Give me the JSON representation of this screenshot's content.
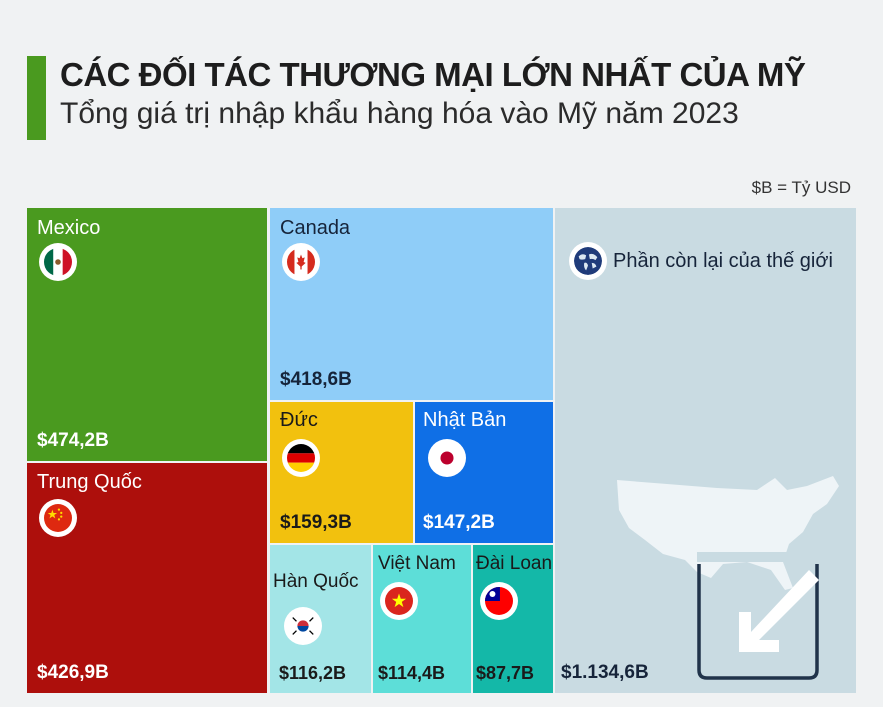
{
  "header": {
    "title": "CÁC ĐỐI TÁC THƯƠNG MẠI LỚN NHẤT CỦA MỸ",
    "subtitle": "Tổng giá trị nhập khẩu hàng hóa vào Mỹ năm 2023",
    "unit_note": "$B = Tỷ USD"
  },
  "colors": {
    "accent": "#4a9a1f",
    "mexico": "#4a9a1f",
    "china": "#ad0f0c",
    "canada": "#8fcdf8",
    "germany": "#f2c10e",
    "japan": "#0f6fe6",
    "korea": "#a3e5e7",
    "vietnam": "#5dded8",
    "taiwan": "#14b8a8",
    "rest": "#c9dbe2"
  },
  "chart_data": {
    "type": "treemap",
    "title": "CÁC ĐỐI TÁC THƯƠNG MẠI LỚN NHẤT CỦA MỸ",
    "subtitle": "Tổng giá trị nhập khẩu hàng hóa vào Mỹ năm 2023",
    "unit": "$B = Tỷ USD",
    "items": [
      {
        "name": "Mexico",
        "value": 474.2,
        "label": "$474,2B",
        "icon": "mexico-flag-icon"
      },
      {
        "name": "Trung Quốc",
        "value": 426.9,
        "label": "$426,9B",
        "icon": "china-flag-icon"
      },
      {
        "name": "Canada",
        "value": 418.6,
        "label": "$418,6B",
        "icon": "canada-flag-icon"
      },
      {
        "name": "Đức",
        "value": 159.3,
        "label": "$159,3B",
        "icon": "germany-flag-icon"
      },
      {
        "name": "Nhật Bản",
        "value": 147.2,
        "label": "$147,2B",
        "icon": "japan-flag-icon"
      },
      {
        "name": "Hàn Quốc",
        "value": 116.2,
        "label": "$116,2B",
        "icon": "korea-flag-icon"
      },
      {
        "name": "Việt Nam",
        "value": 114.4,
        "label": "$114,4B",
        "icon": "vietnam-flag-icon"
      },
      {
        "name": "Đài Loan",
        "value": 87.7,
        "label": "$87,7B",
        "icon": "taiwan-flag-icon"
      },
      {
        "name": "Phần còn lại của thế giới",
        "value": 1134.6,
        "label": "$1.134,6B",
        "icon": "globe-icon"
      }
    ]
  }
}
